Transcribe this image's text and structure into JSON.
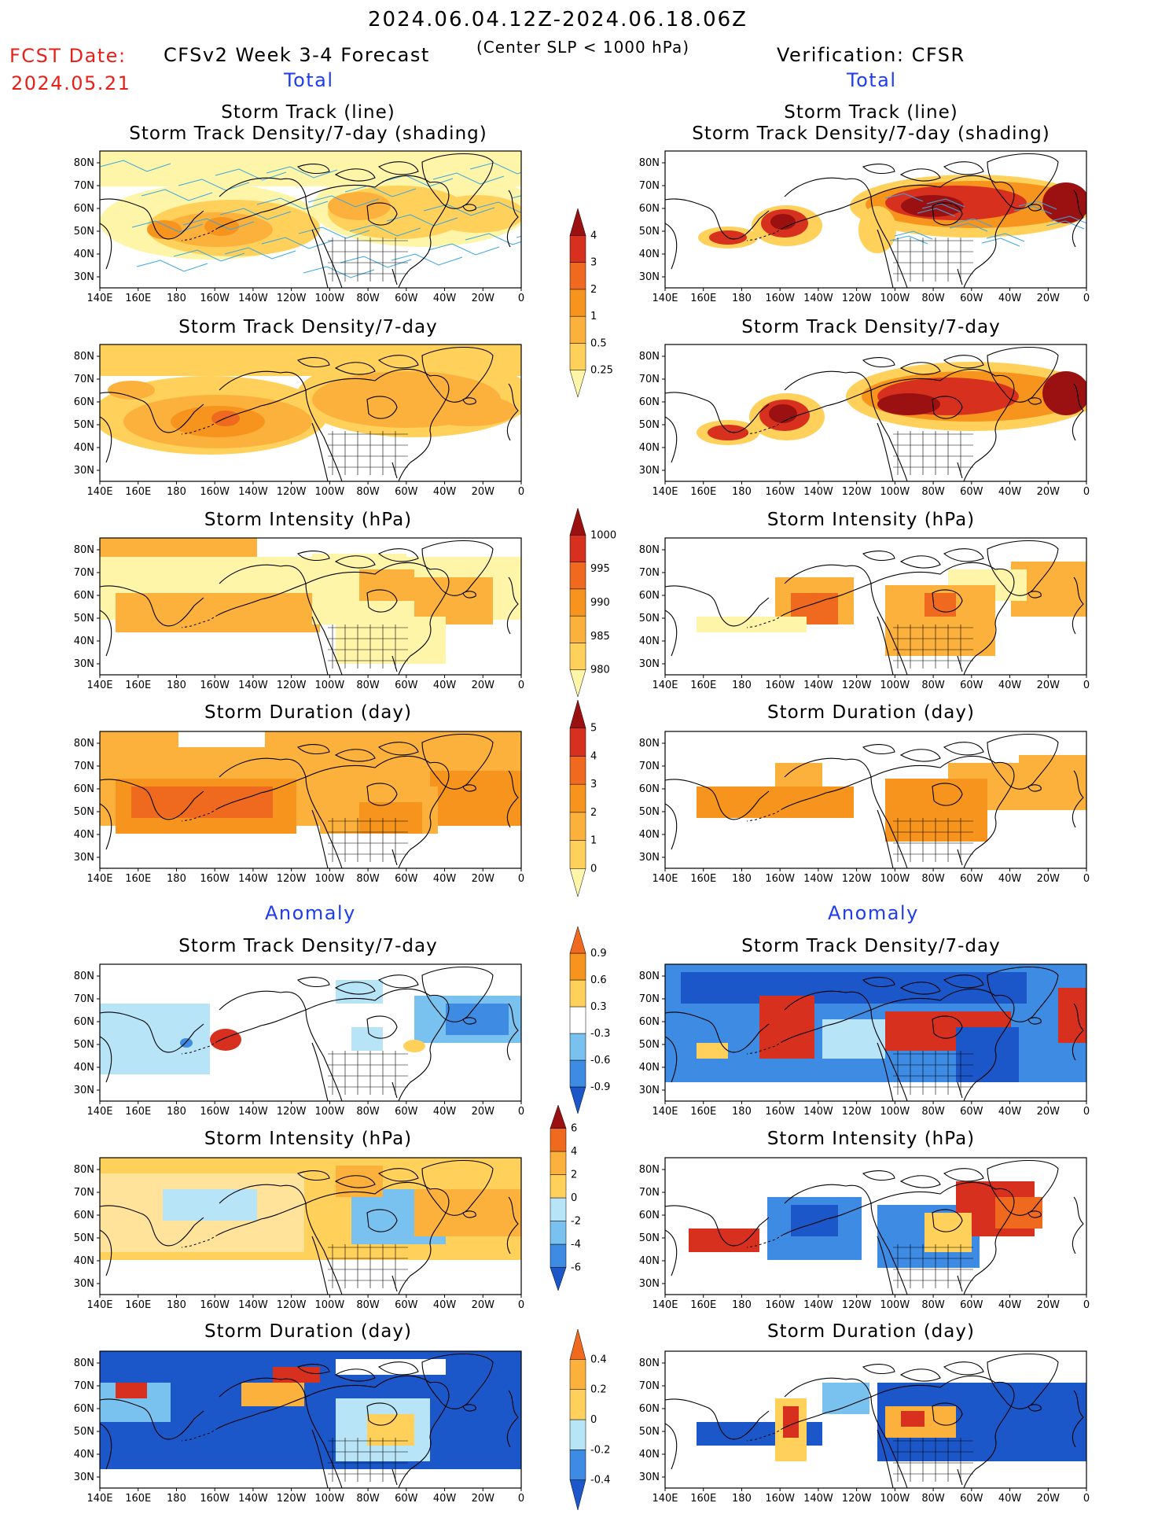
{
  "header": {
    "period": "2024.06.04.12Z-2024.06.18.06Z",
    "fcst_label": "FCST Date:",
    "fcst_date": "2024.05.21",
    "left_title": "CFSv2 Week 3-4 Forecast",
    "condition": "(Center SLP < 1000 hPa)",
    "right_title": "Verification: CFSR"
  },
  "sections": {
    "total": "Total",
    "anomaly": "Anomaly"
  },
  "panel_titles": {
    "track_line": "Storm Track (line)",
    "track_density_shading": "Storm Track Density/7-day (shading)",
    "density": "Storm Track Density/7-day",
    "intensity": "Storm Intensity (hPa)",
    "duration": "Storm Duration (day)"
  },
  "axes": {
    "lat_ticks": [
      "80N",
      "70N",
      "60N",
      "50N",
      "40N",
      "30N"
    ],
    "lon_ticks": [
      "140E",
      "160E",
      "180",
      "160W",
      "140W",
      "120W",
      "100W",
      "80W",
      "60W",
      "40W",
      "20W",
      "0"
    ]
  },
  "colorbars": {
    "density_total": [
      "4",
      "3",
      "2",
      "1",
      "0.5",
      "0.25"
    ],
    "intensity_total": [
      "1000",
      "995",
      "990",
      "985",
      "980"
    ],
    "duration_total": [
      "5",
      "4",
      "3",
      "2",
      "1",
      "0"
    ],
    "density_anom": [
      "0.9",
      "0.6",
      "0.3",
      "-0.3",
      "-0.6",
      "-0.9"
    ],
    "intensity_anom": [
      "6",
      "4",
      "2",
      "0",
      "-2",
      "-4",
      "-6"
    ],
    "duration_anom": [
      "0.4",
      "0.2",
      "0",
      "-0.2",
      "-0.4"
    ]
  },
  "colors": {
    "yellow": "#fff5a8",
    "gold": "#ffd05a",
    "orange_light": "#fdb13d",
    "orange": "#f7941d",
    "orange_dark": "#ef6a1f",
    "red": "#d7301f",
    "dark_red": "#9b1111",
    "light_blue": "#b7e4f7",
    "sky_blue": "#79c2f0",
    "blue": "#3d8be3",
    "dark_blue": "#1c57c9",
    "fcst_red": "#e8201a",
    "section_blue": "#1e3cf0",
    "track_line": "#3aa7e0"
  }
}
